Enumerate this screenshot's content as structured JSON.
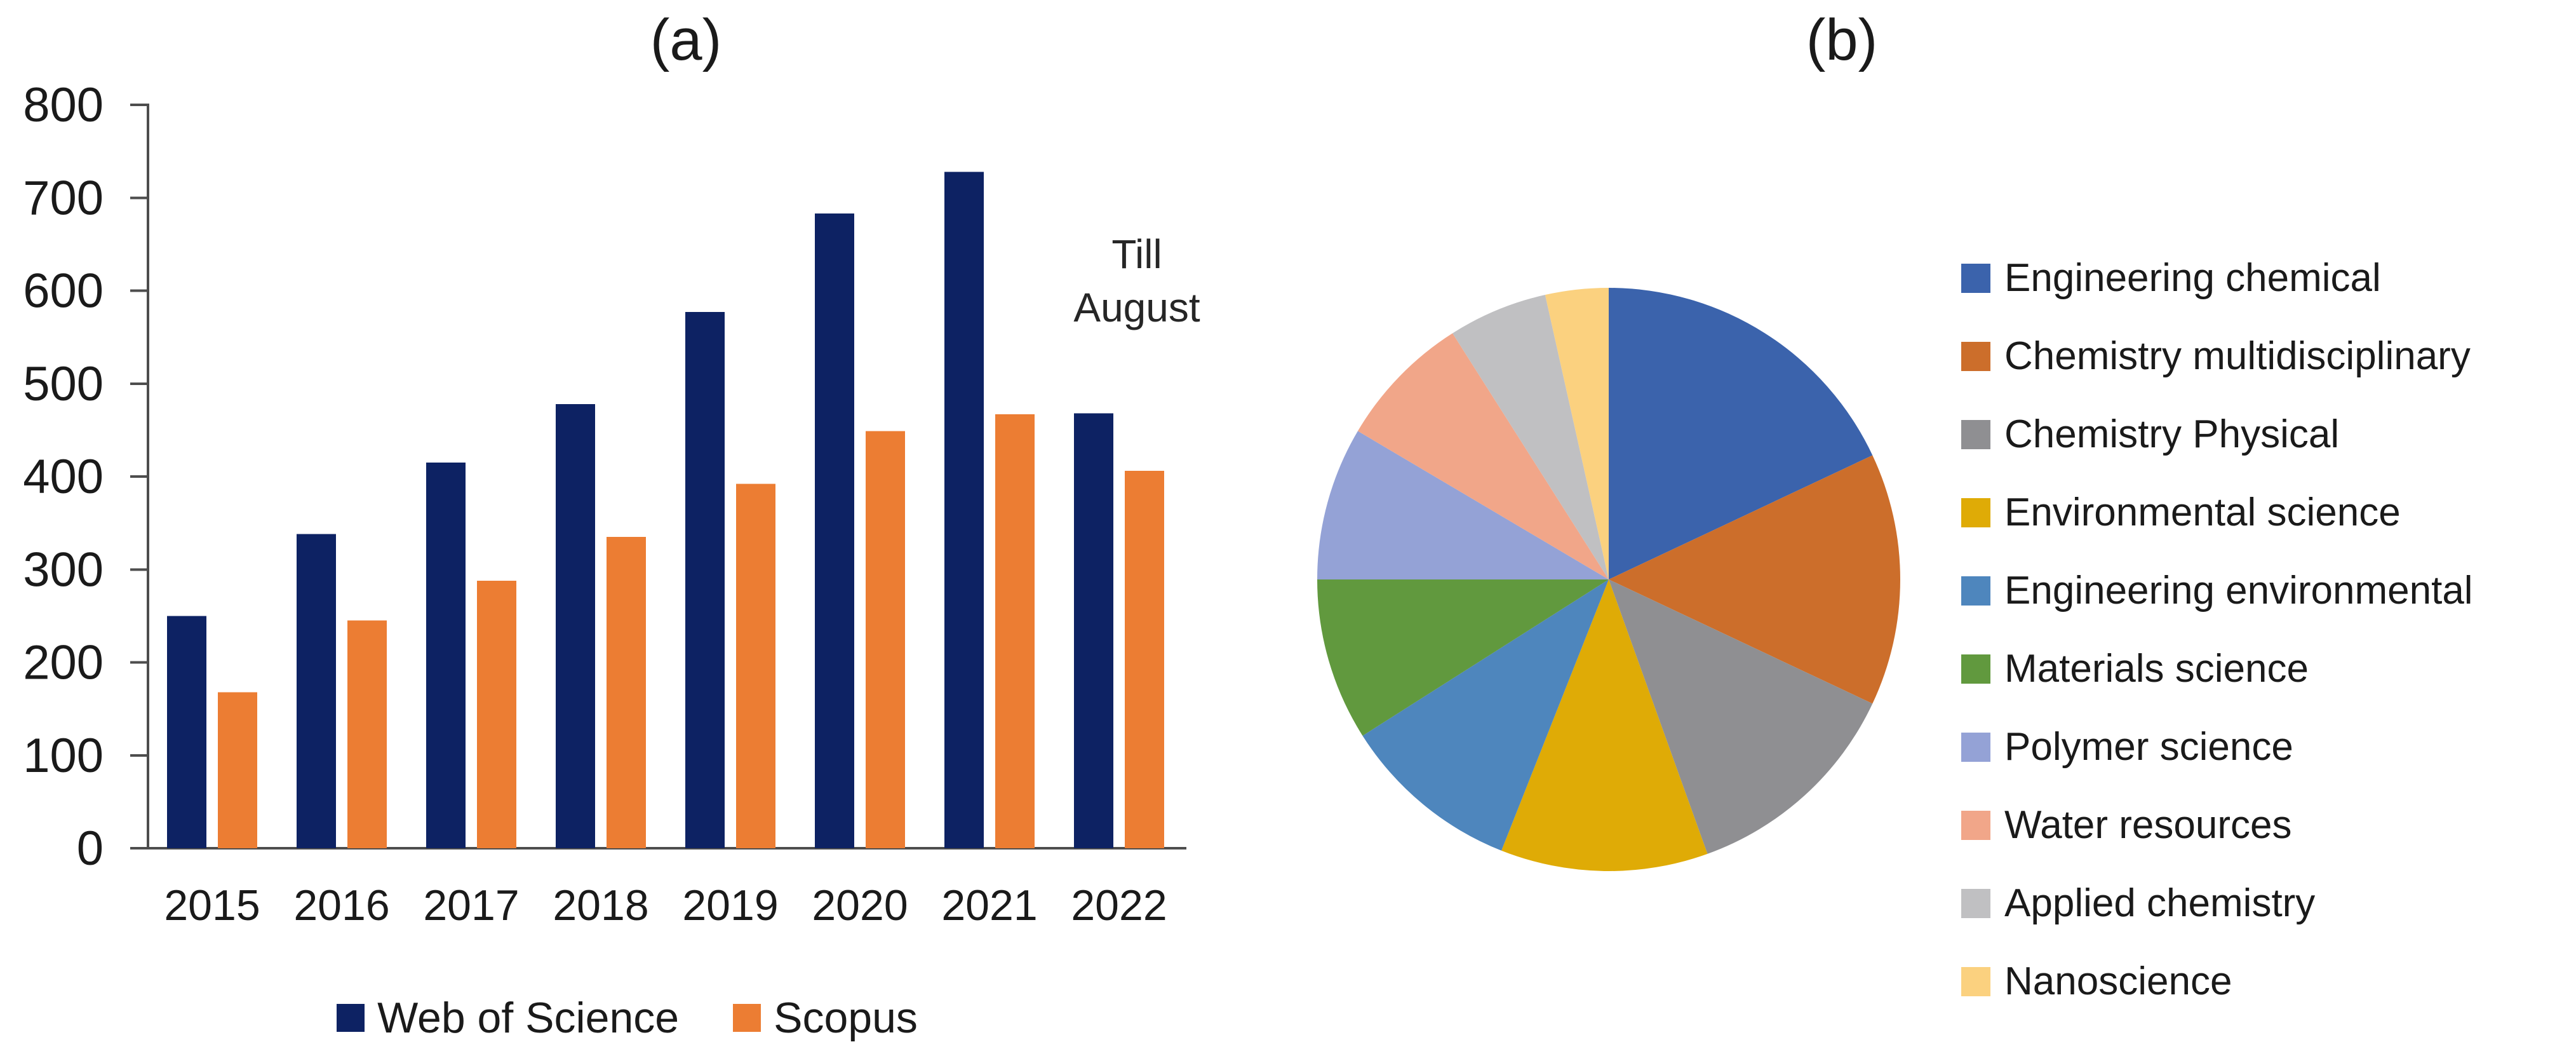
{
  "figure": {
    "background": "#ffffff",
    "axis_color": "#4d4d4d",
    "text_color": "#1a1a1a"
  },
  "chart_data": [
    {
      "type": "bar",
      "title": "(a)",
      "categories": [
        "2015",
        "2016",
        "2017",
        "2018",
        "2019",
        "2020",
        "2021",
        "2022"
      ],
      "series": [
        {
          "name": "Web of Science",
          "color": "#0D2263",
          "values": [
            250,
            338,
            415,
            478,
            577,
            683,
            728,
            468
          ]
        },
        {
          "name": "Scopus",
          "color": "#EC7D33",
          "values": [
            168,
            245,
            288,
            335,
            392,
            449,
            467,
            406
          ]
        }
      ],
      "xlabel": "",
      "ylabel": "",
      "ylim": [
        0,
        800
      ],
      "ytick_step": 100,
      "yticks": [
        0,
        100,
        200,
        300,
        400,
        500,
        600,
        700,
        800
      ],
      "grid": false,
      "legend_position": "bottom",
      "annotation": "Till\nAugust"
    },
    {
      "type": "pie",
      "title": "(b)",
      "start_angle_deg": 0,
      "direction": "clockwise",
      "legend_position": "right",
      "slices": [
        {
          "label": "Engineering chemical",
          "percent": 18.0,
          "color": "#3B63AC"
        },
        {
          "label": "Chemistry multidisciplinary",
          "percent": 14.0,
          "color": "#CC6E2B"
        },
        {
          "label": "Chemistry Physical",
          "percent": 12.5,
          "color": "#8F8F92"
        },
        {
          "label": "Environmental science",
          "percent": 11.5,
          "color": "#DFAB06"
        },
        {
          "label": "Engineering environmental",
          "percent": 10.0,
          "color": "#4E86BD"
        },
        {
          "label": "Materials science",
          "percent": 9.0,
          "color": "#61993E"
        },
        {
          "label": "Polymer science",
          "percent": 8.5,
          "color": "#94A2D6"
        },
        {
          "label": "Water resources",
          "percent": 7.5,
          "color": "#F1A689"
        },
        {
          "label": "Applied chemistry",
          "percent": 5.5,
          "color": "#C0C0C2"
        },
        {
          "label": "Nanoscience",
          "percent": 3.5,
          "color": "#FBD17F"
        }
      ]
    }
  ]
}
